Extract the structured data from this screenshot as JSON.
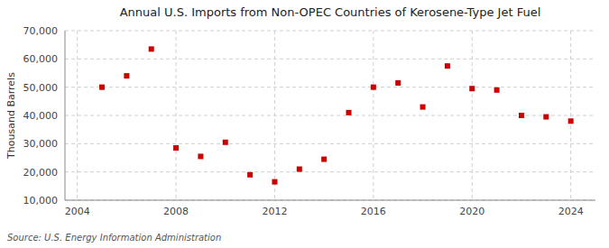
{
  "chart_data": {
    "type": "scatter",
    "title": "Annual U.S. Imports from Non-OPEC Countries of Kerosene-Type Jet Fuel",
    "ylabel": "Thousand Barrels",
    "annotations": [
      "Source: U.S. Energy Information Administration"
    ],
    "x": [
      2005,
      2006,
      2007,
      2008,
      2009,
      2010,
      2011,
      2012,
      2013,
      2014,
      2015,
      2016,
      2017,
      2018,
      2019,
      2020,
      2021,
      2022,
      2023,
      2024
    ],
    "values": [
      50000,
      54000,
      63500,
      28500,
      25500,
      30500,
      19000,
      16500,
      21000,
      24500,
      41000,
      50000,
      51500,
      43000,
      57500,
      49500,
      49000,
      40000,
      39500,
      38000
    ],
    "color": "#cc0000",
    "marker": "square",
    "xlim": [
      2003.5,
      2025
    ],
    "xticks": [
      2004,
      2008,
      2012,
      2016,
      2020,
      2024
    ],
    "ylim": [
      10000,
      70000
    ],
    "yticks": [
      {
        "value": 10000,
        "label": "10,000"
      },
      {
        "value": 20000,
        "label": "20,000"
      },
      {
        "value": 30000,
        "label": "30,000"
      },
      {
        "value": 40000,
        "label": "40,000"
      },
      {
        "value": 50000,
        "label": "50,000"
      },
      {
        "value": 60000,
        "label": "60,000"
      },
      {
        "value": 70000,
        "label": "70,000"
      }
    ],
    "grid": true
  }
}
